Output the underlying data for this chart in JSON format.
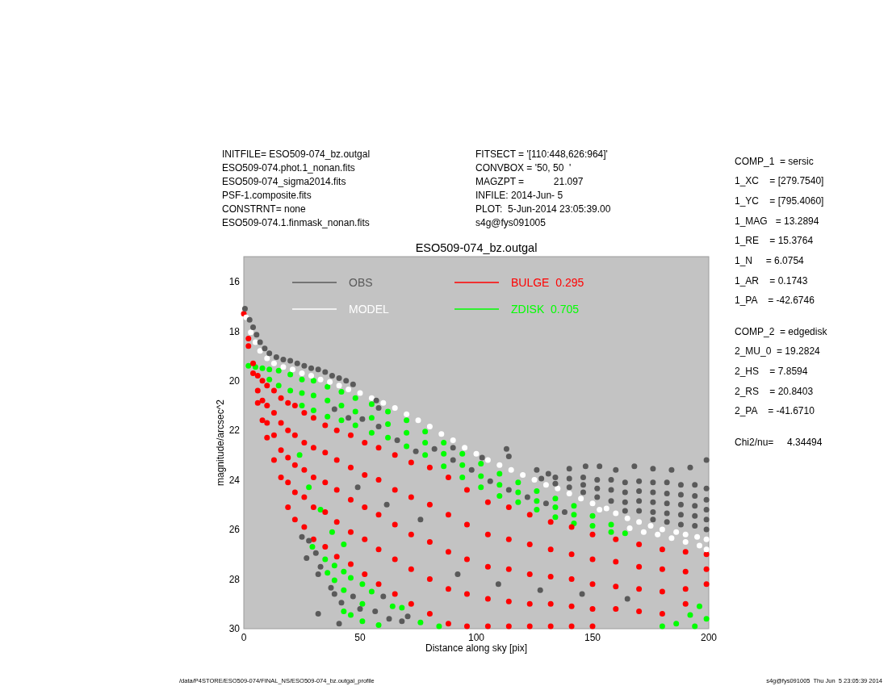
{
  "chart_data": {
    "type": "scatter",
    "title": "ESO509-074_bz.outgal",
    "xlabel": "Distance along sky [pix]",
    "ylabel": "magnitude/arcsec^2",
    "xlim": [
      0,
      200
    ],
    "ylim": [
      30,
      15
    ],
    "xticks": [
      0,
      50,
      100,
      150,
      200
    ],
    "yticks": [
      16,
      18,
      20,
      22,
      24,
      26,
      28,
      30
    ],
    "legend": "top",
    "marker": "circle",
    "series": [
      {
        "name": "OBS",
        "color": "#5a5a5a",
        "x": [
          0.5,
          2.5,
          4,
          5.5,
          7,
          9,
          11,
          14,
          17,
          20,
          23,
          26,
          29,
          32,
          35,
          38,
          41,
          44,
          47,
          57,
          58,
          90,
          102.5,
          113,
          114,
          126,
          131,
          140,
          147,
          153,
          160,
          168,
          176,
          184,
          192,
          199,
          128,
          134,
          134,
          140,
          140,
          146,
          146,
          146,
          152,
          152,
          152,
          158,
          158,
          158,
          164,
          164,
          164,
          164,
          170,
          170,
          170,
          170,
          176,
          176,
          176,
          176,
          176,
          182,
          182,
          182,
          182,
          182,
          188,
          188,
          188,
          188,
          188,
          194,
          194,
          194,
          194,
          194,
          199,
          199,
          199,
          199,
          199,
          39,
          45,
          51,
          58,
          66,
          74,
          82,
          90,
          98,
          106,
          114,
          122,
          130,
          138,
          49,
          61.5,
          76,
          92,
          109.5,
          127.5,
          145.5,
          165,
          25,
          28,
          27,
          31,
          33,
          32,
          37.5,
          39,
          42,
          41,
          32,
          47,
          50,
          56.5,
          60,
          62.5,
          68,
          70.5
        ],
        "values": [
          17.1,
          17.55,
          17.85,
          18.15,
          18.45,
          18.7,
          18.9,
          19.05,
          19.15,
          19.2,
          19.3,
          19.4,
          19.5,
          19.55,
          19.65,
          19.8,
          19.9,
          20.0,
          20.15,
          20.8,
          21.1,
          22.7,
          23.1,
          22.75,
          23.05,
          23.6,
          23.75,
          23.55,
          23.45,
          23.45,
          23.6,
          23.45,
          23.55,
          23.6,
          23.5,
          23.2,
          23.95,
          23.9,
          24.15,
          23.95,
          24.3,
          23.9,
          24.2,
          24.5,
          24.0,
          24.35,
          24.7,
          24.0,
          24.4,
          24.85,
          24.1,
          24.5,
          24.9,
          25.25,
          24.05,
          24.45,
          24.85,
          25.25,
          24.1,
          24.5,
          24.9,
          25.3,
          25.6,
          24.1,
          24.55,
          24.95,
          25.35,
          25.7,
          24.2,
          24.6,
          25.0,
          25.4,
          25.8,
          24.2,
          24.65,
          25.05,
          25.45,
          25.85,
          24.35,
          24.8,
          25.2,
          25.6,
          26.0,
          21.15,
          21.5,
          21.55,
          21.85,
          22.4,
          22.85,
          22.75,
          23.2,
          23.6,
          24.05,
          24.4,
          24.7,
          24.95,
          25.3,
          24.3,
          25.0,
          25.6,
          27.8,
          28.2,
          28.45,
          28.6,
          28.8,
          26.3,
          26.45,
          27.15,
          26.95,
          27.5,
          27.8,
          28.35,
          28.6,
          28.95,
          29.8,
          29.4,
          28.7,
          29.2,
          29.3,
          28.7,
          29.6,
          29.7,
          29.5
        ]
      },
      {
        "name": "MODEL",
        "color": "#ffffff",
        "x": [
          1,
          3,
          5,
          7,
          10,
          13,
          17,
          21,
          25,
          29,
          33,
          37,
          41,
          45,
          50,
          55,
          60,
          65,
          70,
          75,
          80,
          85,
          90,
          95,
          100,
          105,
          110,
          115,
          120,
          125,
          130,
          135,
          140,
          145,
          150,
          153,
          156,
          160,
          165,
          166,
          170,
          172,
          175,
          178,
          180,
          184,
          186,
          190,
          190,
          195,
          196,
          199,
          199
        ],
        "values": [
          17.45,
          18.05,
          18.45,
          18.8,
          19.1,
          19.3,
          19.45,
          19.55,
          19.7,
          19.8,
          19.95,
          20.05,
          20.2,
          20.35,
          20.5,
          20.7,
          20.9,
          21.1,
          21.35,
          21.6,
          21.85,
          22.15,
          22.4,
          22.7,
          22.95,
          23.2,
          23.4,
          23.6,
          23.8,
          24.0,
          24.2,
          24.35,
          24.55,
          24.75,
          24.95,
          25.2,
          25.15,
          25.35,
          25.55,
          25.95,
          25.7,
          26.1,
          25.85,
          26.2,
          26.0,
          26.35,
          26.1,
          26.2,
          26.5,
          26.3,
          26.65,
          26.4,
          26.8
        ]
      },
      {
        "name": "BULGE  0.295",
        "color": "#ff0000",
        "x": [
          0,
          2,
          2,
          4,
          4,
          6,
          6,
          6,
          8,
          8,
          8,
          10,
          10,
          10,
          10,
          13,
          13,
          13,
          13,
          16,
          16,
          16,
          16,
          19,
          19,
          19,
          19,
          19,
          22,
          22,
          22,
          22,
          22,
          26,
          26,
          26,
          26,
          26,
          30,
          30,
          30,
          30,
          30,
          35,
          35,
          35,
          35,
          35,
          40,
          40,
          40,
          40,
          40,
          46,
          46,
          46,
          46,
          46,
          52,
          52,
          52,
          52,
          52,
          58,
          58,
          58,
          58,
          58,
          65,
          65,
          65,
          65,
          65,
          72,
          72,
          72,
          72,
          72,
          80,
          80,
          80,
          80,
          80,
          88,
          88,
          88,
          88,
          88,
          96,
          96,
          96,
          96,
          96,
          105,
          105,
          105,
          105,
          105,
          114,
          114,
          114,
          114,
          114,
          123,
          123,
          123,
          123,
          123,
          132,
          132,
          132,
          132,
          132,
          141,
          141,
          141,
          141,
          141,
          150,
          150,
          150,
          150,
          150,
          160,
          160,
          160,
          160,
          170,
          170,
          170,
          170,
          180,
          180,
          180,
          180,
          190,
          190,
          190,
          190,
          199,
          199,
          199
        ],
        "values": [
          17.3,
          18.3,
          18.6,
          19.3,
          19.7,
          19.8,
          20.4,
          20.9,
          20.0,
          20.8,
          21.6,
          20.2,
          21.0,
          21.7,
          22.3,
          20.4,
          21.3,
          22.2,
          23.2,
          20.7,
          21.7,
          22.8,
          23.9,
          20.9,
          22.0,
          23.1,
          24.1,
          25.1,
          21.0,
          22.2,
          23.4,
          24.5,
          25.6,
          21.3,
          22.5,
          23.6,
          24.7,
          25.9,
          21.5,
          22.7,
          23.9,
          25.1,
          26.4,
          21.8,
          22.9,
          24.1,
          25.3,
          26.7,
          22.0,
          23.2,
          24.4,
          25.7,
          27.1,
          22.2,
          23.5,
          24.8,
          26.1,
          27.4,
          22.5,
          23.8,
          25.1,
          26.4,
          27.8,
          22.7,
          24.0,
          25.4,
          26.8,
          28.2,
          23.0,
          24.4,
          25.8,
          27.2,
          28.6,
          23.3,
          24.7,
          26.2,
          27.6,
          29.0,
          23.5,
          25.0,
          26.5,
          28.0,
          29.4,
          23.9,
          25.4,
          26.9,
          28.4,
          29.8,
          24.4,
          25.8,
          27.2,
          28.6,
          29.9,
          24.9,
          26.2,
          27.5,
          28.8,
          29.9,
          25.1,
          26.4,
          27.6,
          28.9,
          29.9,
          25.4,
          26.6,
          27.8,
          29.0,
          29.9,
          25.7,
          26.8,
          27.9,
          29.0,
          29.9,
          25.9,
          27.0,
          28.0,
          29.1,
          29.9,
          26.2,
          27.2,
          28.2,
          29.2,
          29.9,
          26.4,
          27.3,
          28.3,
          29.2,
          26.6,
          27.5,
          28.4,
          29.3,
          26.8,
          27.6,
          28.5,
          29.4,
          26.9,
          27.7,
          28.4,
          29.0,
          27.0,
          27.6,
          28.2
        ]
      },
      {
        "name": "ZDISK  0.705",
        "color": "#00ff00",
        "x": [
          2,
          5,
          8,
          11,
          11,
          15,
          15,
          20,
          20,
          25,
          25,
          25,
          30,
          30,
          30,
          36,
          36,
          36,
          42,
          42,
          42,
          48,
          48,
          48,
          55,
          55,
          55,
          62,
          62,
          62,
          70,
          70,
          70,
          78,
          78,
          78,
          86,
          86,
          86,
          94,
          94,
          94,
          102,
          102,
          102,
          110,
          110,
          110,
          118,
          118,
          118,
          126,
          126,
          126,
          134,
          134,
          134,
          142,
          142,
          142,
          150,
          150,
          158,
          158,
          164,
          24,
          28,
          33,
          38,
          43,
          29.5,
          35,
          36,
          39,
          39,
          43,
          43,
          43,
          46,
          46,
          51,
          51,
          51,
          55,
          58,
          64,
          68,
          76,
          84,
          180,
          186,
          192,
          196,
          199,
          194
        ],
        "values": [
          19.4,
          19.45,
          19.5,
          19.55,
          19.95,
          19.6,
          20.2,
          19.75,
          20.4,
          19.95,
          20.5,
          21.0,
          20.0,
          20.6,
          21.2,
          20.25,
          20.8,
          21.45,
          20.45,
          21.0,
          21.6,
          20.7,
          21.25,
          21.8,
          20.95,
          21.5,
          22.1,
          21.25,
          21.75,
          22.3,
          21.6,
          22.1,
          22.65,
          22.05,
          22.5,
          23.0,
          22.5,
          22.95,
          23.45,
          22.95,
          23.4,
          23.9,
          23.35,
          23.85,
          24.3,
          23.75,
          24.2,
          24.65,
          24.1,
          24.5,
          24.9,
          24.45,
          24.85,
          25.2,
          24.75,
          25.1,
          25.5,
          25.05,
          25.4,
          25.75,
          25.45,
          25.85,
          25.8,
          26.1,
          26.15,
          23.0,
          24.3,
          25.2,
          26.1,
          26.6,
          26.7,
          27.2,
          27.75,
          27.45,
          28.05,
          27.7,
          28.45,
          29.3,
          27.95,
          29.45,
          28.2,
          29.0,
          29.7,
          28.5,
          29.85,
          29.1,
          29.15,
          29.75,
          29.9,
          29.9,
          29.8,
          29.45,
          29.1,
          29.6,
          29.9
        ]
      }
    ],
    "annotations": [
      "INITFILE= ESO509-074_bz.outgal",
      "ESO509-074.phot.1_nonan.fits",
      "ESO509-074_sigma2014.fits",
      "PSF-1.composite.fits",
      "CONSTRNT= none",
      "ESO509-074.1.finmask_nonan.fits",
      "FITSECT = '[110:448,626:964]'",
      "CONVBOX = '50, 50  '",
      "MAGZPT =           21.097",
      "INFILE: 2014-Jun- 5",
      "PLOT:  5-Jun-2014 23:05:39.00",
      "s4g@fys091005",
      "COMP_1  = sersic",
      "1_XC    = [279.7540]",
      "1_YC    = [795.4060]",
      "1_MAG   = 13.2894",
      "1_RE    = 15.3764",
      "1_N     = 6.0754",
      "1_AR    = 0.1743",
      "1_PA    = -42.6746",
      "COMP_2  = edgedisk",
      "2_MU_0  = 19.2824",
      "2_HS    = 7.8594",
      "2_RS    = 20.8403",
      "2_PA    = -41.6710",
      "Chi2/nu=     4.34494",
      "/data/P4STORE/ESO509-074/FINAL_NS/ESO509-074_bz.outgal_profile",
      "s4g@fys091005  Thu Jun  5 23:05:39 2014"
    ]
  }
}
